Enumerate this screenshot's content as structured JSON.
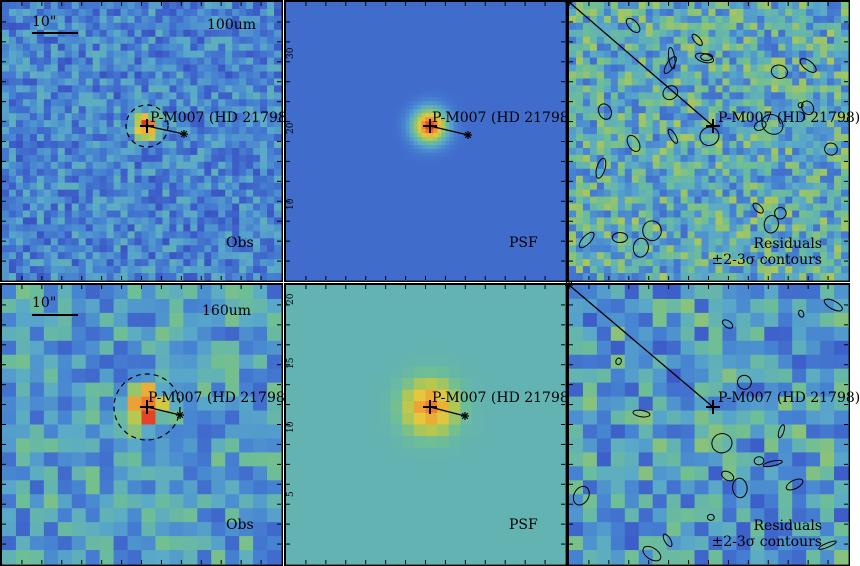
{
  "figure": {
    "source_label": "P-M007 (HD 21798)",
    "rows": [
      {
        "band": "100um",
        "scale_bar": "10\"",
        "obs_label": "Obs",
        "psf_label": "PSF",
        "residual_label_1": "Residuals",
        "residual_label_2": "±2-3σ contours",
        "psf_yticks": [
          "30",
          "20",
          "10"
        ]
      },
      {
        "band": "160um",
        "scale_bar": "10\"",
        "obs_label": "Obs",
        "psf_label": "PSF",
        "residual_label_1": "Residuals",
        "residual_label_2": "±2-3σ contours",
        "psf_yticks": [
          "20",
          "15",
          "10",
          "5"
        ]
      }
    ]
  }
}
